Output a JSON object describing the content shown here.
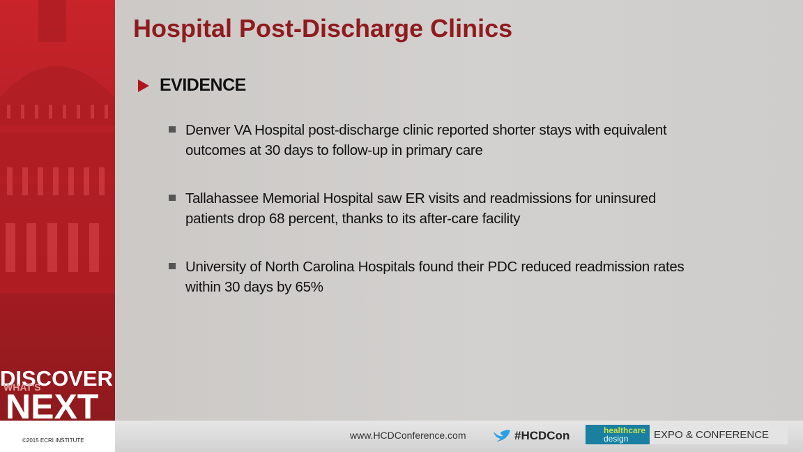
{
  "header": {
    "title": "Hospital Post-Discharge Clinics"
  },
  "section": {
    "heading": "EVIDENCE",
    "bullets": [
      {
        "lines": [
          "Denver VA Hospital post-discharge clinic reported shorter stays with equivalent",
          "outcomes at 30 days to follow-up in primary care"
        ]
      },
      {
        "lines": [
          "Tallahassee Memorial Hospital saw ER visits and readmissions for uninsured",
          "patients drop 68 percent, thanks to its after-care facility"
        ]
      },
      {
        "lines": [
          "University of North Carolina Hospitals found their PDC reduced readmission rates",
          "within 30 days by 65%"
        ]
      }
    ]
  },
  "sidebar": {
    "discover": "DISCOVER",
    "whats": "WHAT'S",
    "next": "NEXT",
    "copyright": "©2015 ECRI INSTITUTE"
  },
  "footer": {
    "website": "www.HCDConference.com",
    "hashtag": "#HCDCon",
    "logo_top": "healthcare",
    "logo_bottom": "design",
    "expo": "EXPO & CONFERENCE"
  }
}
